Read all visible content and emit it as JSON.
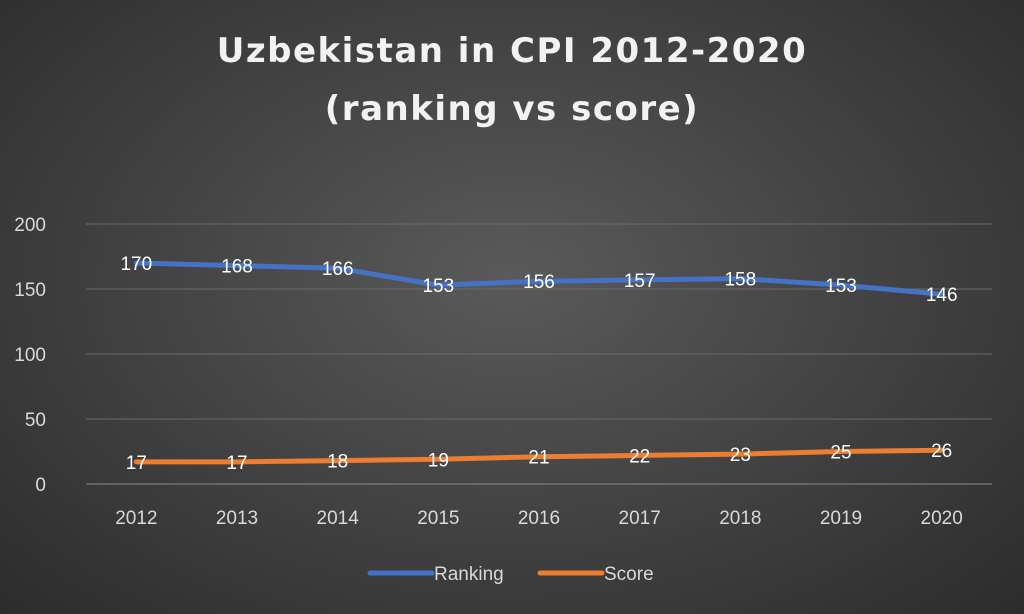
{
  "chart_data": {
    "type": "line",
    "title_lines": [
      "Uzbekistan in CPI 2012-2020",
      "(ranking vs score)"
    ],
    "categories": [
      "2012",
      "2013",
      "2014",
      "2015",
      "2016",
      "2017",
      "2018",
      "2019",
      "2020"
    ],
    "series": [
      {
        "name": "Ranking",
        "color": "#4472c4",
        "values": [
          170,
          168,
          166,
          153,
          156,
          157,
          158,
          153,
          146
        ]
      },
      {
        "name": "Score",
        "color": "#ed7d31",
        "values": [
          17,
          17,
          18,
          19,
          21,
          22,
          23,
          25,
          26
        ]
      }
    ],
    "ylim": [
      0,
      200
    ],
    "yticks": [
      "0",
      "50",
      "100",
      "150",
      "200"
    ],
    "grid": true,
    "legend_position": "bottom",
    "data_labels": true
  }
}
